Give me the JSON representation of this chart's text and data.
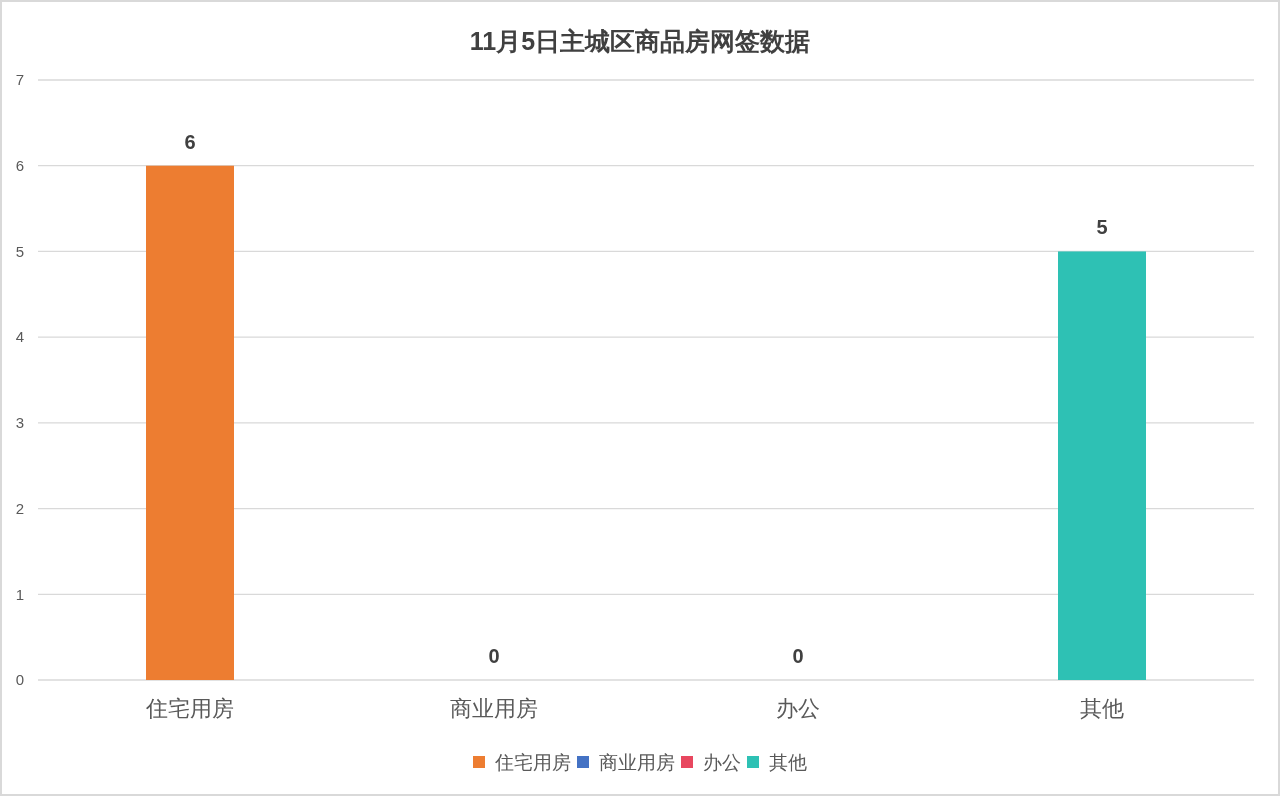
{
  "chart_data": {
    "type": "bar",
    "title": "11月5日主城区商品房网签数据",
    "categories": [
      "住宅用房",
      "商业用房",
      "办公",
      "其他"
    ],
    "series": [
      {
        "name": "住宅用房",
        "color": "#ed7d31",
        "values": [
          6,
          null,
          null,
          null
        ]
      },
      {
        "name": "商业用房",
        "color": "#4472c4",
        "values": [
          null,
          0,
          null,
          null
        ]
      },
      {
        "name": "办公",
        "color": "#e8475f",
        "values": [
          null,
          null,
          0,
          null
        ]
      },
      {
        "name": "其他",
        "color": "#2ec1b4",
        "values": [
          null,
          null,
          null,
          5
        ]
      }
    ],
    "ylim": [
      0,
      7
    ],
    "yticks": [
      0,
      1,
      2,
      3,
      4,
      5,
      6,
      7
    ],
    "grid": true,
    "legend": "bottom",
    "data_labels": true
  }
}
